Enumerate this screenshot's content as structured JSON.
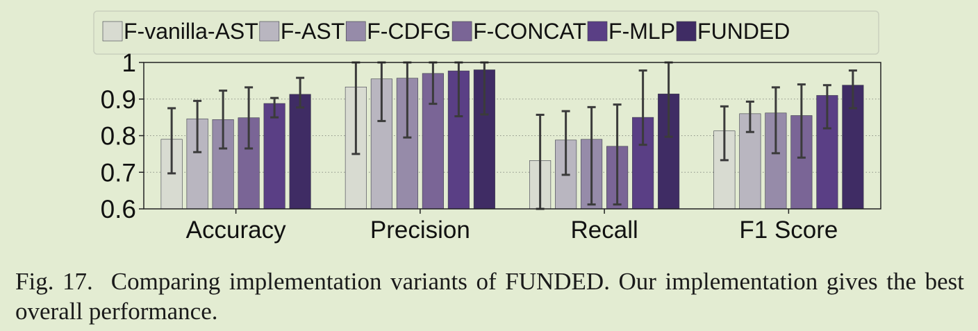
{
  "chart_data": {
    "type": "bar",
    "categories": [
      "Accuracy",
      "Precision",
      "Recall",
      "F1 Score"
    ],
    "ylim": [
      0.6,
      1.0
    ],
    "yticks": [
      "0.6",
      "0.7",
      "0.8",
      "0.9",
      "1"
    ],
    "grid": "horizontal dotted",
    "legend_position": "top",
    "series": [
      {
        "name": "F-vanilla-AST",
        "color": "#d8dbd1",
        "values": [
          0.79,
          0.933,
          0.732,
          0.813
        ],
        "err_low": [
          0.697,
          0.75,
          0.6,
          0.733
        ],
        "err_high": [
          0.875,
          1.0,
          0.857,
          0.88
        ]
      },
      {
        "name": "F-AST",
        "color": "#b9b6c0",
        "values": [
          0.846,
          0.955,
          0.788,
          0.86
        ],
        "err_low": [
          0.755,
          0.84,
          0.693,
          0.81
        ],
        "err_high": [
          0.895,
          1.0,
          0.867,
          0.893
        ]
      },
      {
        "name": "F-CDFG",
        "color": "#968ba9",
        "values": [
          0.844,
          0.957,
          0.79,
          0.862
        ],
        "err_low": [
          0.765,
          0.795,
          0.612,
          0.752
        ],
        "err_high": [
          0.923,
          1.0,
          0.878,
          0.932
        ]
      },
      {
        "name": "F-CONCAT",
        "color": "#7a6596",
        "values": [
          0.849,
          0.97,
          0.771,
          0.855
        ],
        "err_low": [
          0.765,
          0.887,
          0.612,
          0.74
        ],
        "err_high": [
          0.932,
          1.0,
          0.885,
          0.94
        ]
      },
      {
        "name": "F-MLP",
        "color": "#5a3f85",
        "values": [
          0.888,
          0.977,
          0.85,
          0.91
        ],
        "err_low": [
          0.85,
          0.853,
          0.775,
          0.82
        ],
        "err_high": [
          0.903,
          1.0,
          0.978,
          0.938
        ]
      },
      {
        "name": "FUNDED",
        "color": "#3f2c64",
        "values": [
          0.913,
          0.98,
          0.914,
          0.938
        ],
        "err_low": [
          0.877,
          0.858,
          0.797,
          0.875
        ],
        "err_high": [
          0.958,
          1.0,
          1.0,
          0.978
        ]
      }
    ]
  },
  "caption": {
    "fig_label": "Fig. 17.",
    "text_before": "Comparing implementation variants of ",
    "name_lead": "F",
    "name_rest": "UNDED",
    "text_after": ". Our implementation gives the best overall performance."
  }
}
